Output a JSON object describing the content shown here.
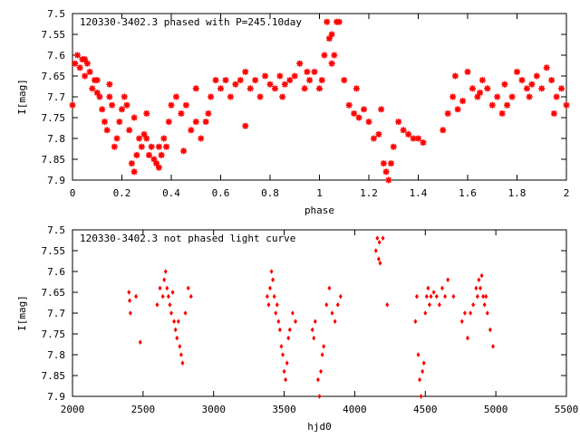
{
  "chart_data": [
    {
      "type": "scatter",
      "title": "120330-3402.3 phased with P=245.10day",
      "xlabel": "phase",
      "ylabel": "I[mag]",
      "xlim": [
        0,
        2
      ],
      "ylim": [
        7.9,
        7.5
      ],
      "y_inverted": true,
      "grid": false,
      "marker_color": "#ff0000",
      "marker": "star",
      "x_ticks": [
        "0",
        "0.2",
        "0.4",
        "0.6",
        "0.8",
        "1",
        "1.2",
        "1.4",
        "1.6",
        "1.8",
        "2"
      ],
      "y_ticks": [
        "7.5",
        "7.55",
        "7.6",
        "7.65",
        "7.7",
        "7.75",
        "7.8",
        "7.85",
        "7.9"
      ],
      "series": [
        {
          "x": [
            0.0,
            0.01,
            0.02,
            0.03,
            0.04,
            0.05,
            0.06,
            0.07,
            0.08,
            0.09,
            0.1,
            0.11,
            0.12,
            0.13,
            0.14,
            0.15,
            0.16,
            0.17,
            0.18,
            0.19,
            0.2,
            0.21,
            0.22,
            0.23,
            0.24,
            0.25,
            0.26,
            0.27,
            0.28,
            0.29,
            0.3,
            0.31,
            0.32,
            0.33,
            0.34,
            0.35,
            0.36,
            0.37,
            0.38,
            0.39,
            0.4,
            0.42,
            0.44,
            0.46,
            0.48,
            0.5,
            0.52,
            0.54,
            0.56,
            0.58,
            0.6,
            0.62,
            0.64,
            0.66,
            0.68,
            0.7,
            0.72,
            0.74,
            0.76,
            0.78,
            0.8,
            0.82,
            0.84,
            0.86,
            0.88,
            0.9,
            0.92,
            0.94,
            0.96,
            0.98,
            1.0,
            1.01,
            1.02,
            1.03,
            1.04,
            1.05,
            1.06,
            1.07,
            1.08,
            1.1,
            1.12,
            1.14,
            1.16,
            1.18,
            1.2,
            1.22,
            1.24,
            1.26,
            1.27,
            1.28,
            1.29,
            1.3,
            1.32,
            1.34,
            1.36,
            1.38,
            1.4,
            1.42,
            1.5,
            1.52,
            1.54,
            1.56,
            1.58,
            1.6,
            1.62,
            1.64,
            1.66,
            1.68,
            1.7,
            1.72,
            1.74,
            1.76,
            1.78,
            1.8,
            1.82,
            1.84,
            1.86,
            1.88,
            1.9,
            1.92,
            1.94,
            1.96,
            1.98,
            2.0,
            0.05,
            0.1,
            0.15,
            0.25,
            0.3,
            0.35,
            0.45,
            0.5,
            0.55,
            0.7,
            0.85,
            0.95,
            1.05,
            1.15,
            1.25,
            1.55,
            1.65,
            1.75,
            1.85,
            1.95
          ],
          "y": [
            7.72,
            7.62,
            7.6,
            7.63,
            7.61,
            7.65,
            7.62,
            7.64,
            7.68,
            7.66,
            7.69,
            7.7,
            7.73,
            7.76,
            7.78,
            7.7,
            7.72,
            7.82,
            7.8,
            7.76,
            7.73,
            7.7,
            7.72,
            7.78,
            7.86,
            7.88,
            7.84,
            7.8,
            7.82,
            7.79,
            7.8,
            7.84,
            7.82,
            7.85,
            7.86,
            7.87,
            7.84,
            7.8,
            7.82,
            7.76,
            7.72,
            7.7,
            7.74,
            7.72,
            7.78,
            7.76,
            7.8,
            7.76,
            7.7,
            7.66,
            7.68,
            7.66,
            7.7,
            7.67,
            7.66,
            7.64,
            7.68,
            7.66,
            7.7,
            7.65,
            7.67,
            7.68,
            7.65,
            7.67,
            7.66,
            7.65,
            7.62,
            7.68,
            7.66,
            7.64,
            7.68,
            7.66,
            7.6,
            7.52,
            7.56,
            7.55,
            7.6,
            7.52,
            7.52,
            7.66,
            7.72,
            7.74,
            7.75,
            7.73,
            7.76,
            7.8,
            7.79,
            7.86,
            7.88,
            7.9,
            7.86,
            7.82,
            7.76,
            7.78,
            7.79,
            7.8,
            7.8,
            7.81,
            7.78,
            7.74,
            7.7,
            7.73,
            7.71,
            7.64,
            7.68,
            7.7,
            7.66,
            7.68,
            7.72,
            7.7,
            7.74,
            7.72,
            7.7,
            7.64,
            7.66,
            7.68,
            7.67,
            7.65,
            7.68,
            7.63,
            7.66,
            7.7,
            7.68,
            7.72,
            7.61,
            7.66,
            7.67,
            7.75,
            7.74,
            7.82,
            7.83,
            7.68,
            7.74,
            7.77,
            7.7,
            7.64,
            7.62,
            7.68,
            7.73,
            7.65,
            7.69,
            7.67,
            7.7,
            7.74
          ]
        }
      ]
    },
    {
      "type": "scatter",
      "title": "120330-3402.3 not phased light curve",
      "xlabel": "hjd0",
      "ylabel": "I[mag]",
      "xlim": [
        2000,
        5500
      ],
      "ylim": [
        7.9,
        7.5
      ],
      "y_inverted": true,
      "grid": false,
      "marker_color": "#ff0000",
      "marker": "diamond",
      "x_ticks": [
        "2000",
        "2500",
        "3000",
        "3500",
        "4000",
        "4500",
        "5000",
        "5500"
      ],
      "y_ticks": [
        "7.5",
        "7.55",
        "7.6",
        "7.65",
        "7.7",
        "7.75",
        "7.8",
        "7.85",
        "7.9"
      ],
      "series": [
        {
          "x": [
            2400,
            2405,
            2410,
            2450,
            2480,
            2600,
            2620,
            2640,
            2650,
            2660,
            2670,
            2680,
            2690,
            2700,
            2710,
            2720,
            2730,
            2740,
            2750,
            2760,
            2770,
            2780,
            2800,
            2820,
            2840,
            3380,
            3390,
            3400,
            3410,
            3420,
            3430,
            3440,
            3450,
            3460,
            3470,
            3480,
            3490,
            3500,
            3510,
            3520,
            3530,
            3540,
            3560,
            3580,
            3700,
            3710,
            3720,
            3740,
            3750,
            3760,
            3770,
            3780,
            3800,
            3820,
            3840,
            3860,
            3880,
            3900,
            4150,
            4160,
            4170,
            4175,
            4180,
            4200,
            4230,
            4430,
            4440,
            4450,
            4460,
            4470,
            4480,
            4490,
            4500,
            4510,
            4520,
            4530,
            4540,
            4560,
            4580,
            4600,
            4620,
            4640,
            4660,
            4700,
            4760,
            4780,
            4800,
            4820,
            4840,
            4860,
            4870,
            4880,
            4890,
            4900,
            4910,
            4920,
            4930,
            4940,
            4960,
            4980
          ],
          "y": [
            7.65,
            7.67,
            7.7,
            7.66,
            7.77,
            7.68,
            7.64,
            7.66,
            7.62,
            7.6,
            7.64,
            7.66,
            7.68,
            7.7,
            7.65,
            7.72,
            7.74,
            7.76,
            7.72,
            7.78,
            7.8,
            7.82,
            7.7,
            7.64,
            7.66,
            7.66,
            7.68,
            7.64,
            7.6,
            7.62,
            7.66,
            7.7,
            7.68,
            7.72,
            7.74,
            7.78,
            7.8,
            7.84,
            7.86,
            7.82,
            7.76,
            7.74,
            7.7,
            7.72,
            7.74,
            7.76,
            7.72,
            7.86,
            7.9,
            7.84,
            7.8,
            7.78,
            7.68,
            7.64,
            7.7,
            7.72,
            7.68,
            7.66,
            7.55,
            7.52,
            7.57,
            7.53,
            7.58,
            7.52,
            7.68,
            7.72,
            7.66,
            7.8,
            7.86,
            7.9,
            7.84,
            7.82,
            7.7,
            7.66,
            7.64,
            7.68,
            7.66,
            7.65,
            7.66,
            7.68,
            7.64,
            7.66,
            7.62,
            7.66,
            7.72,
            7.7,
            7.76,
            7.7,
            7.68,
            7.64,
            7.66,
            7.62,
            7.64,
            7.61,
            7.66,
            7.68,
            7.66,
            7.7,
            7.74,
            7.78
          ]
        }
      ]
    }
  ]
}
